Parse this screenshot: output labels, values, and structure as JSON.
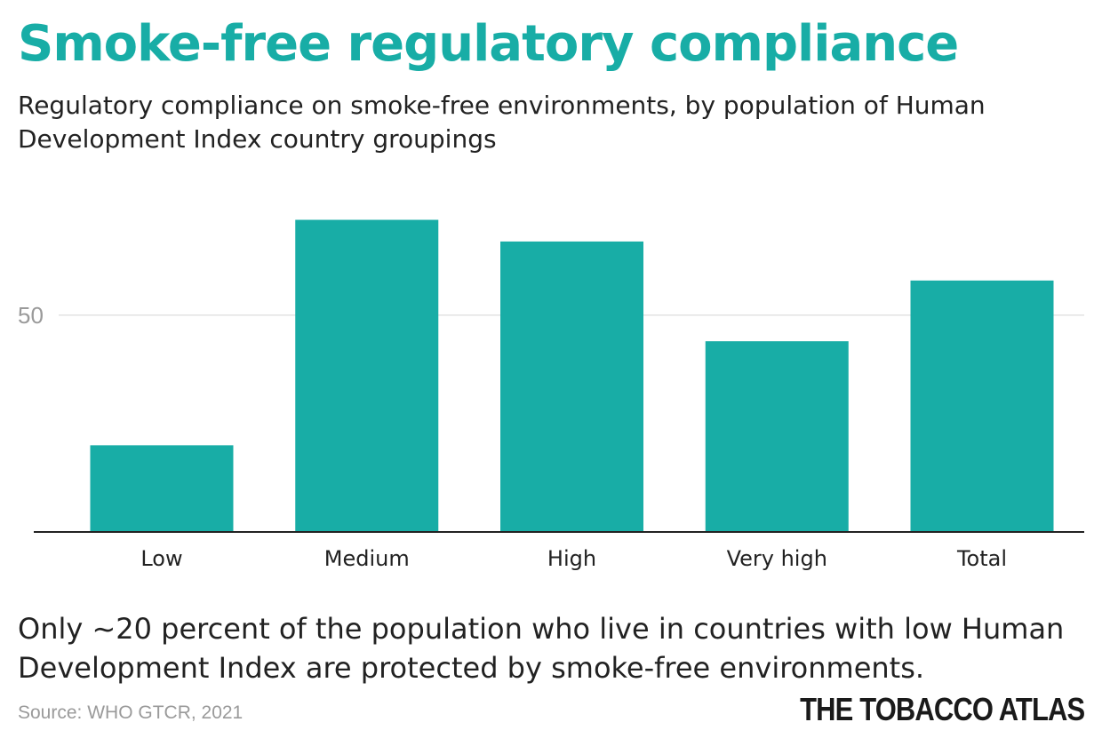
{
  "header": {
    "title": "Smoke-free regulatory compliance",
    "subtitle": "Regulatory compliance on smoke-free environments, by population of Human Development Index country groupings"
  },
  "colors": {
    "accent": "#18ada6",
    "bar": "#18ada6",
    "gridline": "#e3e3e3",
    "tick_label": "#9a9a9a",
    "baseline": "#222222"
  },
  "chart_data": {
    "type": "bar",
    "title": "",
    "xlabel": "",
    "ylabel": "",
    "categories": [
      "Low",
      "Medium",
      "High",
      "Very high",
      "Total"
    ],
    "values": [
      20,
      72,
      67,
      44,
      58
    ],
    "ylim": [
      0,
      76
    ],
    "yticks": [
      50
    ],
    "ytick_labels": [
      "50"
    ],
    "grid": true,
    "legend": "none"
  },
  "footer": {
    "caption": "Only ~20 percent of the population who live in countries with low Human Development Index are protected by smoke-free environments.",
    "source": "Source: WHO GTCR, 2021",
    "brand": "THE TOBACCO ATLAS"
  }
}
